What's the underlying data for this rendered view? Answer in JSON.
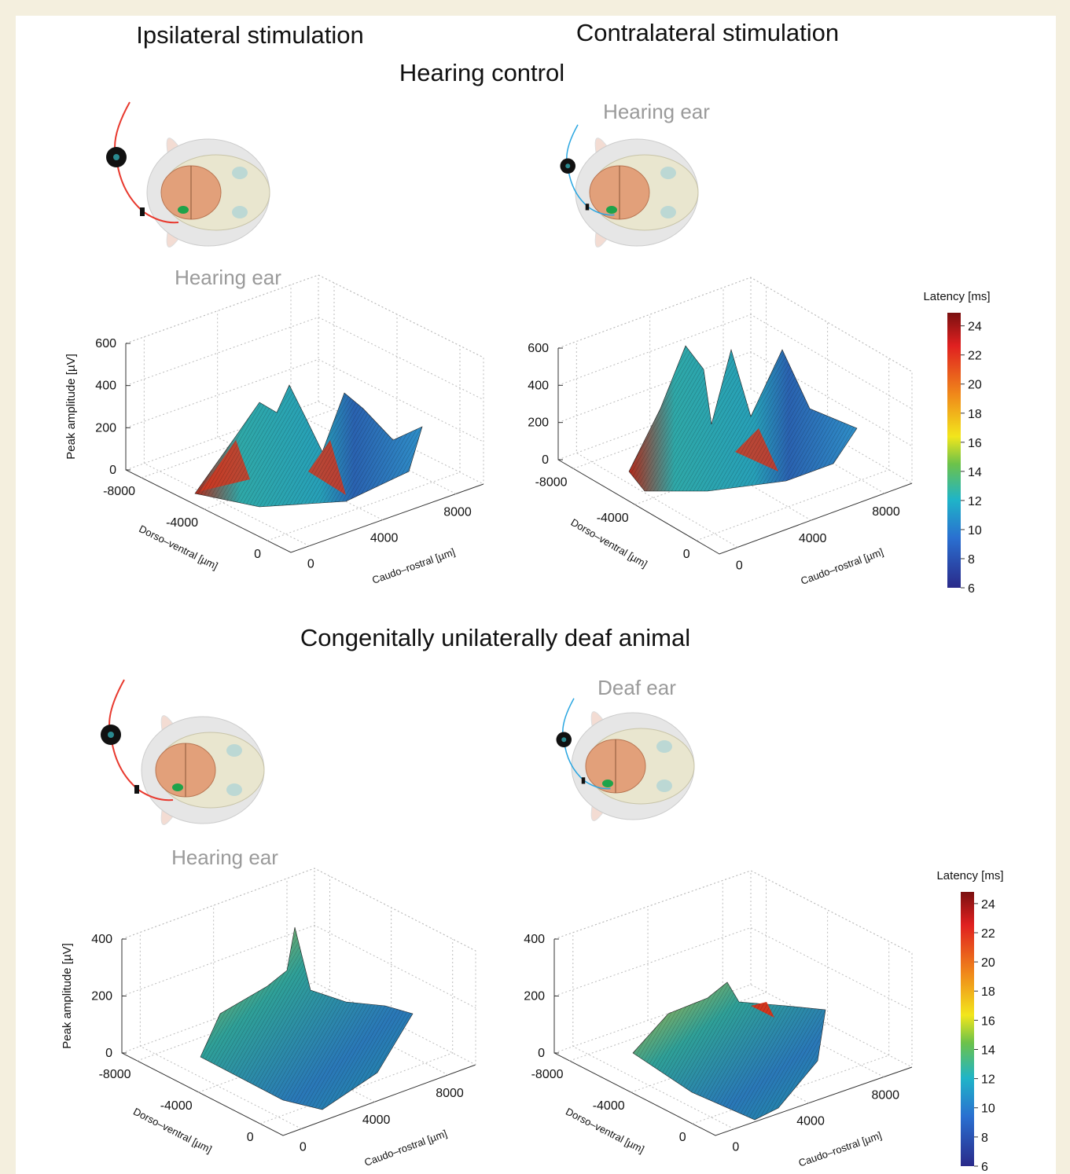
{
  "column_titles": [
    "Ipsilateral stimulation",
    "Contralateral stimulation"
  ],
  "sections": [
    {
      "title": "Hearing control",
      "ear_labels": [
        "Hearing ear",
        "Hearing ear"
      ],
      "colorbar": {
        "title": "Latency [ms]",
        "lim": [
          6,
          24.9
        ],
        "ticks": [
          6,
          8,
          10,
          12,
          14,
          16,
          18,
          20,
          22,
          24
        ]
      },
      "panels": [
        {
          "zlabel": "Peak amplitude [µV]",
          "xlabel": "Caudo–rostral [µm]",
          "ylabel": "Dorso–ventral [µm]",
          "xlim": [
            -1000,
            9500
          ],
          "xticks": [
            0,
            4000,
            8000
          ],
          "ylim": [
            -9000,
            1500
          ],
          "yticks": [
            -8000,
            -4000,
            0
          ],
          "zlim": [
            0,
            600
          ],
          "zticks": [
            0,
            200,
            400,
            600
          ]
        },
        {
          "xlabel": "Caudo–rostral [µm]",
          "ylabel": "Dorso–ventral [µm]",
          "xlim": [
            -1000,
            9500
          ],
          "xticks": [
            0,
            4000,
            8000
          ],
          "ylim": [
            -9000,
            1500
          ],
          "yticks": [
            -8000,
            -4000,
            0
          ],
          "zlim": [
            0,
            600
          ],
          "zticks": [
            0,
            200,
            400,
            600
          ]
        }
      ]
    },
    {
      "title": "Congenitally unilaterally deaf animal",
      "ear_labels": [
        "Hearing ear",
        "Deaf ear"
      ],
      "colorbar": {
        "title": "Latency [ms]",
        "lim": [
          6,
          24.8
        ],
        "ticks": [
          6,
          8,
          10,
          12,
          14,
          16,
          18,
          20,
          22,
          24
        ]
      },
      "panels": [
        {
          "zlabel": "Peak amplitude [µV]",
          "xlabel": "Caudo–rostral [µm]",
          "ylabel": "Dorso–ventral [µm]",
          "xlim": [
            -1000,
            9500
          ],
          "xticks": [
            0,
            4000,
            8000
          ],
          "ylim": [
            -9000,
            1500
          ],
          "yticks": [
            -8000,
            -4000,
            0
          ],
          "zlim": [
            0,
            400
          ],
          "zticks": [
            0,
            200,
            400
          ]
        },
        {
          "xlabel": "Caudo–rostral [µm]",
          "ylabel": "Dorso–ventral [µm]",
          "xlim": [
            -1000,
            9500
          ],
          "xticks": [
            0,
            4000,
            8000
          ],
          "ylim": [
            -9000,
            1500
          ],
          "yticks": [
            -8000,
            -4000,
            0
          ],
          "zlim": [
            0,
            400
          ],
          "zticks": [
            0,
            200,
            400
          ]
        }
      ]
    }
  ]
}
